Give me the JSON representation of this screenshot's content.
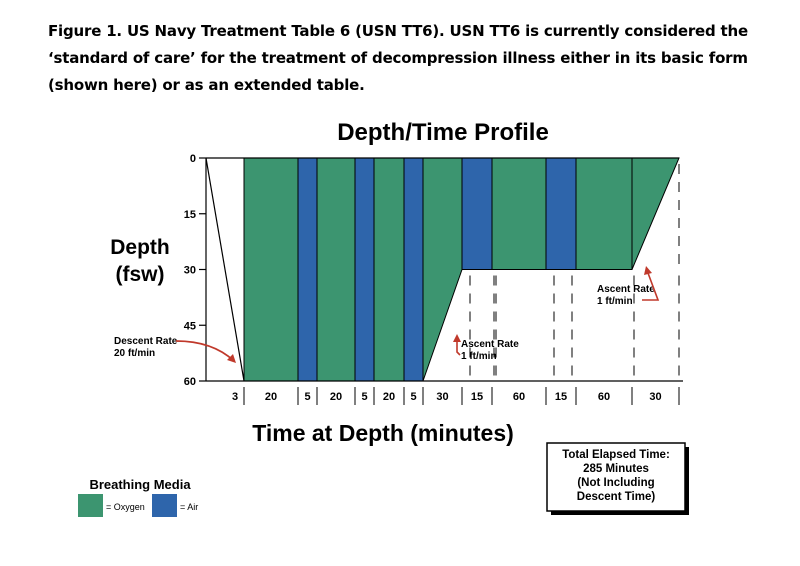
{
  "caption": {
    "line1": "Figure 1. US Navy Treatment Table 6 (USN TT6). USN TT6 is currently considered the",
    "line2": "‘standard of care’ for the treatment of decompression illness either in its basic form",
    "line3": "(shown here) or as an extended table."
  },
  "chart_data": {
    "type": "area",
    "title": "Depth/Time Profile",
    "xlabel": "Time at Depth (minutes)",
    "ylabel_line1": "Depth",
    "ylabel_line2": "(fsw)",
    "ylim": [
      60,
      0
    ],
    "y_ticks": [
      "0",
      "15",
      "30",
      "45",
      "60"
    ],
    "y_tick_values": [
      0,
      15,
      30,
      45,
      60
    ],
    "segments": [
      {
        "minutes": 3,
        "label": "3",
        "medium": "descent",
        "start_depth": 0,
        "end_depth": 60
      },
      {
        "minutes": 20,
        "label": "20",
        "medium": "oxygen",
        "start_depth": 60,
        "end_depth": 60
      },
      {
        "minutes": 5,
        "label": "5",
        "medium": "air",
        "start_depth": 60,
        "end_depth": 60
      },
      {
        "minutes": 20,
        "label": "20",
        "medium": "oxygen",
        "start_depth": 60,
        "end_depth": 60
      },
      {
        "minutes": 5,
        "label": "5",
        "medium": "air",
        "start_depth": 60,
        "end_depth": 60
      },
      {
        "minutes": 20,
        "label": "20",
        "medium": "oxygen",
        "start_depth": 60,
        "end_depth": 60
      },
      {
        "minutes": 5,
        "label": "5",
        "medium": "air",
        "start_depth": 60,
        "end_depth": 60
      },
      {
        "minutes": 30,
        "label": "30",
        "medium": "oxygen",
        "start_depth": 60,
        "end_depth": 30
      },
      {
        "minutes": 15,
        "label": "15",
        "medium": "air",
        "start_depth": 30,
        "end_depth": 30
      },
      {
        "minutes": 60,
        "label": "60",
        "medium": "oxygen",
        "start_depth": 30,
        "end_depth": 30
      },
      {
        "minutes": 15,
        "label": "15",
        "medium": "air",
        "start_depth": 30,
        "end_depth": 30
      },
      {
        "minutes": 60,
        "label": "60",
        "medium": "oxygen",
        "start_depth": 30,
        "end_depth": 30
      },
      {
        "minutes": 30,
        "label": "30",
        "medium": "oxygen",
        "start_depth": 30,
        "end_depth": 0
      }
    ],
    "annotations": {
      "descent": {
        "line1": "Descent Rate",
        "line2": "20 ft/min"
      },
      "ascent1": {
        "line1": "Ascent Rate",
        "line2": "1 ft/min"
      },
      "ascent2": {
        "line1": "Ascent Rate",
        "line2": "1 ft/min"
      }
    },
    "total_box": {
      "line1": "Total Elapsed Time:",
      "line2": "285 Minutes",
      "line3": "(Not Including",
      "line4": "Descent Time)"
    },
    "legend": {
      "title": "Breathing Media",
      "oxygen_label": "= Oxygen",
      "air_label": "= Air"
    },
    "colors": {
      "oxygen": "#3c9570",
      "air": "#2e65ab",
      "annotation": "#c0392b",
      "outline": "#000000"
    }
  }
}
